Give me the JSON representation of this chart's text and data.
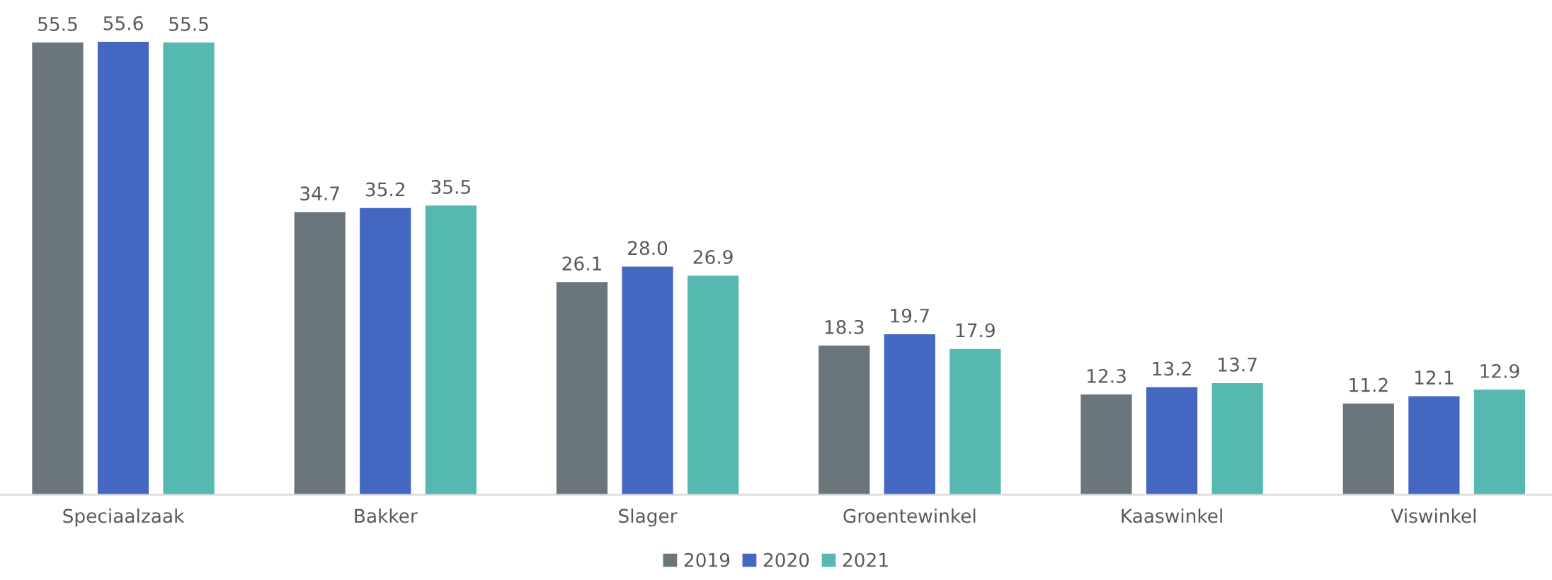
{
  "chart_data": {
    "type": "bar",
    "categories": [
      "Speciaalzaak",
      "Bakker",
      "Slager",
      "Groentewinkel",
      "Kaaswinkel",
      "Viswinkel"
    ],
    "series": [
      {
        "name": "2019",
        "color": "#6b767c",
        "values": [
          55.5,
          34.7,
          26.1,
          18.3,
          12.3,
          11.2
        ],
        "value_labels": [
          "55.5",
          "34.7",
          "26.1",
          "18.3",
          "12.3",
          "11.2"
        ]
      },
      {
        "name": "2020",
        "color": "#4467c1",
        "values": [
          55.6,
          35.2,
          28.0,
          19.7,
          13.2,
          12.1
        ],
        "value_labels": [
          "55.6",
          "35.2",
          "28.0",
          "19.7",
          "13.2",
          "12.1"
        ]
      },
      {
        "name": "2021",
        "color": "#55b8b1",
        "values": [
          55.5,
          35.5,
          26.9,
          17.9,
          13.7,
          12.9
        ],
        "value_labels": [
          "55.5",
          "35.5",
          "26.9",
          "17.9",
          "13.7",
          "12.9"
        ]
      }
    ],
    "legend": "bottom",
    "grid": false
  }
}
